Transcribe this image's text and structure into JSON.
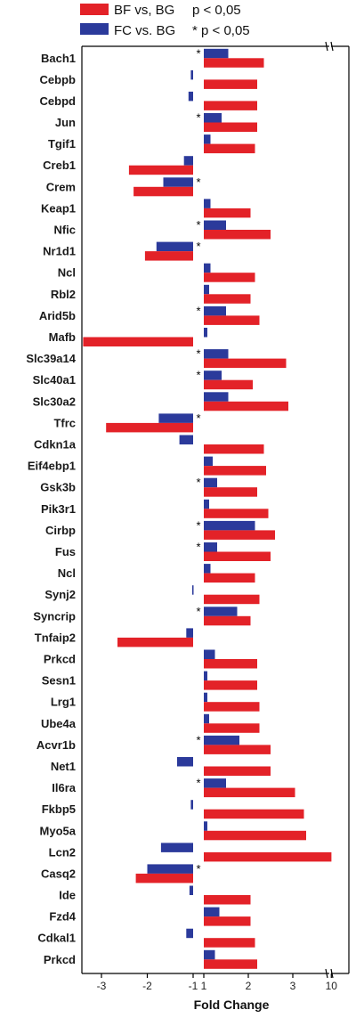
{
  "chart_data": {
    "type": "bar",
    "orientation": "horizontal",
    "xlabel": "Fold Change",
    "x_ticks": [
      "-3",
      "-2",
      "-1",
      "1",
      "2",
      "3",
      "10"
    ],
    "x_axis_break": "between 3 and 10",
    "legend": [
      {
        "name": "BF vs, BG",
        "color": "#e32228",
        "note": "p < 0,05"
      },
      {
        "name": "FC vs. BG",
        "color": "#2b3a9b",
        "note": "* p < 0,05"
      }
    ],
    "categories": [
      "Bach1",
      "Cebpb",
      "Cebpd",
      "Jun",
      "Tgif1",
      "Creb1",
      "Crem",
      "Keap1",
      "Nfic",
      "Nr1d1",
      "Ncl",
      "Rbl2",
      "Arid5b",
      "Mafb",
      "Slc39a14",
      "Slc40a1",
      "Slc30a2",
      "Tfrc",
      "Cdkn1a",
      "Eif4ebp1",
      "Gsk3b",
      "Pik3r1",
      "Cirbp",
      "Fus",
      "Ncl",
      "Synj2",
      "Syncrip",
      "Tnfaip2",
      "Prkcd",
      "Sesn1",
      "Lrg1",
      "Ube4a",
      "Acvr1b",
      "Net1",
      "Il6ra",
      "Fkbp5",
      "Myo5a",
      "Lcn2",
      "Casq2",
      "Ide",
      "Fzd4",
      "Cdkal1",
      "Prkcd"
    ],
    "series": [
      {
        "name": "BF vs, BG",
        "color": "#e32228",
        "values": [
          2.35,
          2.2,
          2.2,
          2.2,
          2.15,
          -2.4,
          -2.3,
          2.05,
          2.5,
          -2.05,
          2.15,
          2.05,
          2.25,
          -3.4,
          2.85,
          2.1,
          2.9,
          -2.9,
          2.35,
          2.4,
          2.2,
          2.45,
          2.6,
          2.5,
          2.15,
          2.25,
          2.05,
          -2.65,
          2.2,
          2.2,
          2.25,
          2.25,
          2.5,
          2.5,
          3.05,
          3.25,
          3.3,
          10.4,
          -2.25,
          2.05,
          2.05,
          2.15,
          2.2
        ]
      },
      {
        "name": "FC vs. BG",
        "color": "#2b3a9b",
        "values": [
          1.55,
          -1.05,
          -1.1,
          1.4,
          1.15,
          -1.2,
          -1.65,
          1.15,
          1.5,
          -1.8,
          1.15,
          1.12,
          1.5,
          1.08,
          1.55,
          1.4,
          1.55,
          -1.75,
          -1.3,
          1.2,
          1.3,
          1.12,
          2.15,
          1.3,
          1.15,
          -1.02,
          1.75,
          -1.15,
          1.25,
          1.08,
          1.08,
          1.12,
          1.8,
          -1.35,
          1.5,
          -1.05,
          1.08,
          -1.7,
          -2.0,
          -1.08,
          1.35,
          -1.15,
          1.25
        ]
      }
    ],
    "significant": [
      true,
      false,
      false,
      true,
      false,
      false,
      true,
      false,
      true,
      true,
      false,
      false,
      true,
      false,
      true,
      true,
      false,
      true,
      false,
      false,
      true,
      false,
      true,
      true,
      false,
      false,
      true,
      false,
      false,
      false,
      false,
      false,
      true,
      false,
      true,
      false,
      false,
      false,
      true,
      false,
      false,
      false,
      false
    ],
    "significance_marker": "*"
  }
}
